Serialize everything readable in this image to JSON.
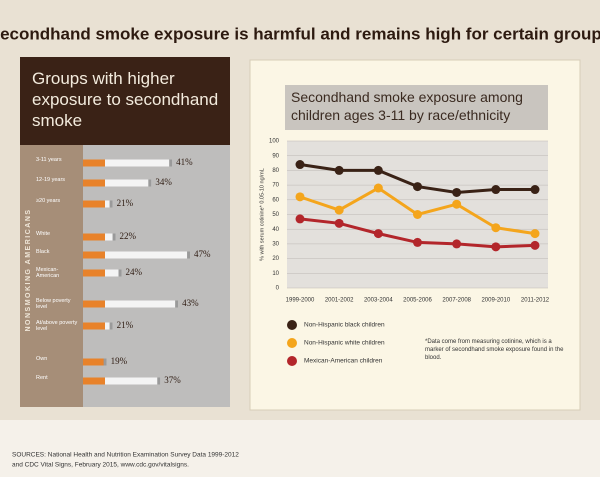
{
  "title": "Secondhand smoke exposure is harmful and remains high for certain groups",
  "sources": [
    "SOURCES: National Health and Nutrition Examination Survey Data 1999-2012",
    "and CDC Vital Signs, February 2015, www.cdc.gov/vitalsigns."
  ],
  "chart_data": [
    {
      "type": "cigarette-bar",
      "title": "Groups with higher exposure to secondhand smoke",
      "side_label": "NONSMOKING AMERICANS",
      "categories": [
        "3-11 years",
        "12-19 years",
        "≥20 years",
        "White",
        "Black",
        "Mexican-American",
        "Below poverty level",
        "At/above poverty level",
        "Own",
        "Rent"
      ],
      "values": [
        41,
        34,
        21,
        22,
        47,
        24,
        43,
        21,
        19,
        37
      ],
      "value_labels": [
        "41%",
        "34%",
        "21%",
        "22%",
        "47%",
        "24%",
        "43%",
        "21%",
        "19%",
        "37%"
      ],
      "color": "#e8822a"
    },
    {
      "type": "line",
      "title": "Secondhand smoke exposure among children ages 3-11 by race/ethnicity",
      "y_label": "% with serum cotinine* 0.05-10 ng/mL",
      "categories": [
        "1999-2000",
        "2001-2002",
        "2003-2004",
        "2005-2006",
        "2007-2008",
        "2009-2010",
        "2011-2012"
      ],
      "series": [
        {
          "name": "Non-Hispanic black children",
          "color": "#3a2216",
          "values": [
            84,
            80,
            80,
            69,
            65,
            67,
            67
          ]
        },
        {
          "name": "Non-Hispanic white children",
          "color": "#f4a51c",
          "values": [
            62,
            53,
            68,
            50,
            57,
            41,
            37
          ]
        },
        {
          "name": "Mexican-American children",
          "color": "#b3262b",
          "values": [
            47,
            44,
            37,
            31,
            30,
            28,
            29
          ]
        }
      ],
      "ylim": [
        0,
        100
      ],
      "yticks": [
        0,
        10,
        20,
        30,
        40,
        50,
        60,
        70,
        80,
        90,
        100
      ],
      "grid": true,
      "note": "*Data come from measuring cotinine, which is a marker of secondhand smoke exposure found in the blood."
    }
  ]
}
